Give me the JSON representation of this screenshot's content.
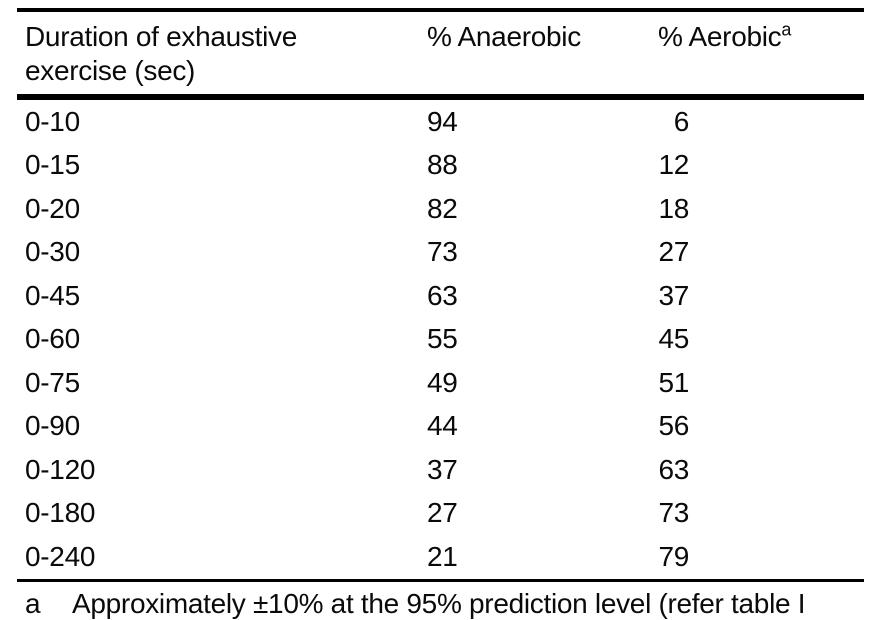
{
  "page": {
    "background_color": "#ffffff",
    "text_color": "#0a0a0a",
    "rule_color": "#000000"
  },
  "table": {
    "headers": {
      "duration": "Duration of exhaustive exercise (sec)",
      "anaerobic": "% Anaerobic",
      "aerobic": "% Aerobic",
      "aerobic_footnote_marker": "a"
    },
    "rows": [
      {
        "duration": "0-10",
        "anaerobic": "94",
        "aerobic": "6"
      },
      {
        "duration": "0-15",
        "anaerobic": "88",
        "aerobic": "12"
      },
      {
        "duration": "0-20",
        "anaerobic": "82",
        "aerobic": "18"
      },
      {
        "duration": "0-30",
        "anaerobic": "73",
        "aerobic": "27"
      },
      {
        "duration": "0-45",
        "anaerobic": "63",
        "aerobic": "37"
      },
      {
        "duration": "0-60",
        "anaerobic": "55",
        "aerobic": "45"
      },
      {
        "duration": "0-75",
        "anaerobic": "49",
        "aerobic": "51"
      },
      {
        "duration": "0-90",
        "anaerobic": "44",
        "aerobic": "56"
      },
      {
        "duration": "0-120",
        "anaerobic": "37",
        "aerobic": "63"
      },
      {
        "duration": "0-180",
        "anaerobic": "27",
        "aerobic": "73"
      },
      {
        "duration": "0-240",
        "anaerobic": "21",
        "aerobic": "79"
      }
    ],
    "footnote": {
      "marker": "a",
      "text": "Approximately ±10% at the 95% prediction level (refer table I"
    }
  }
}
